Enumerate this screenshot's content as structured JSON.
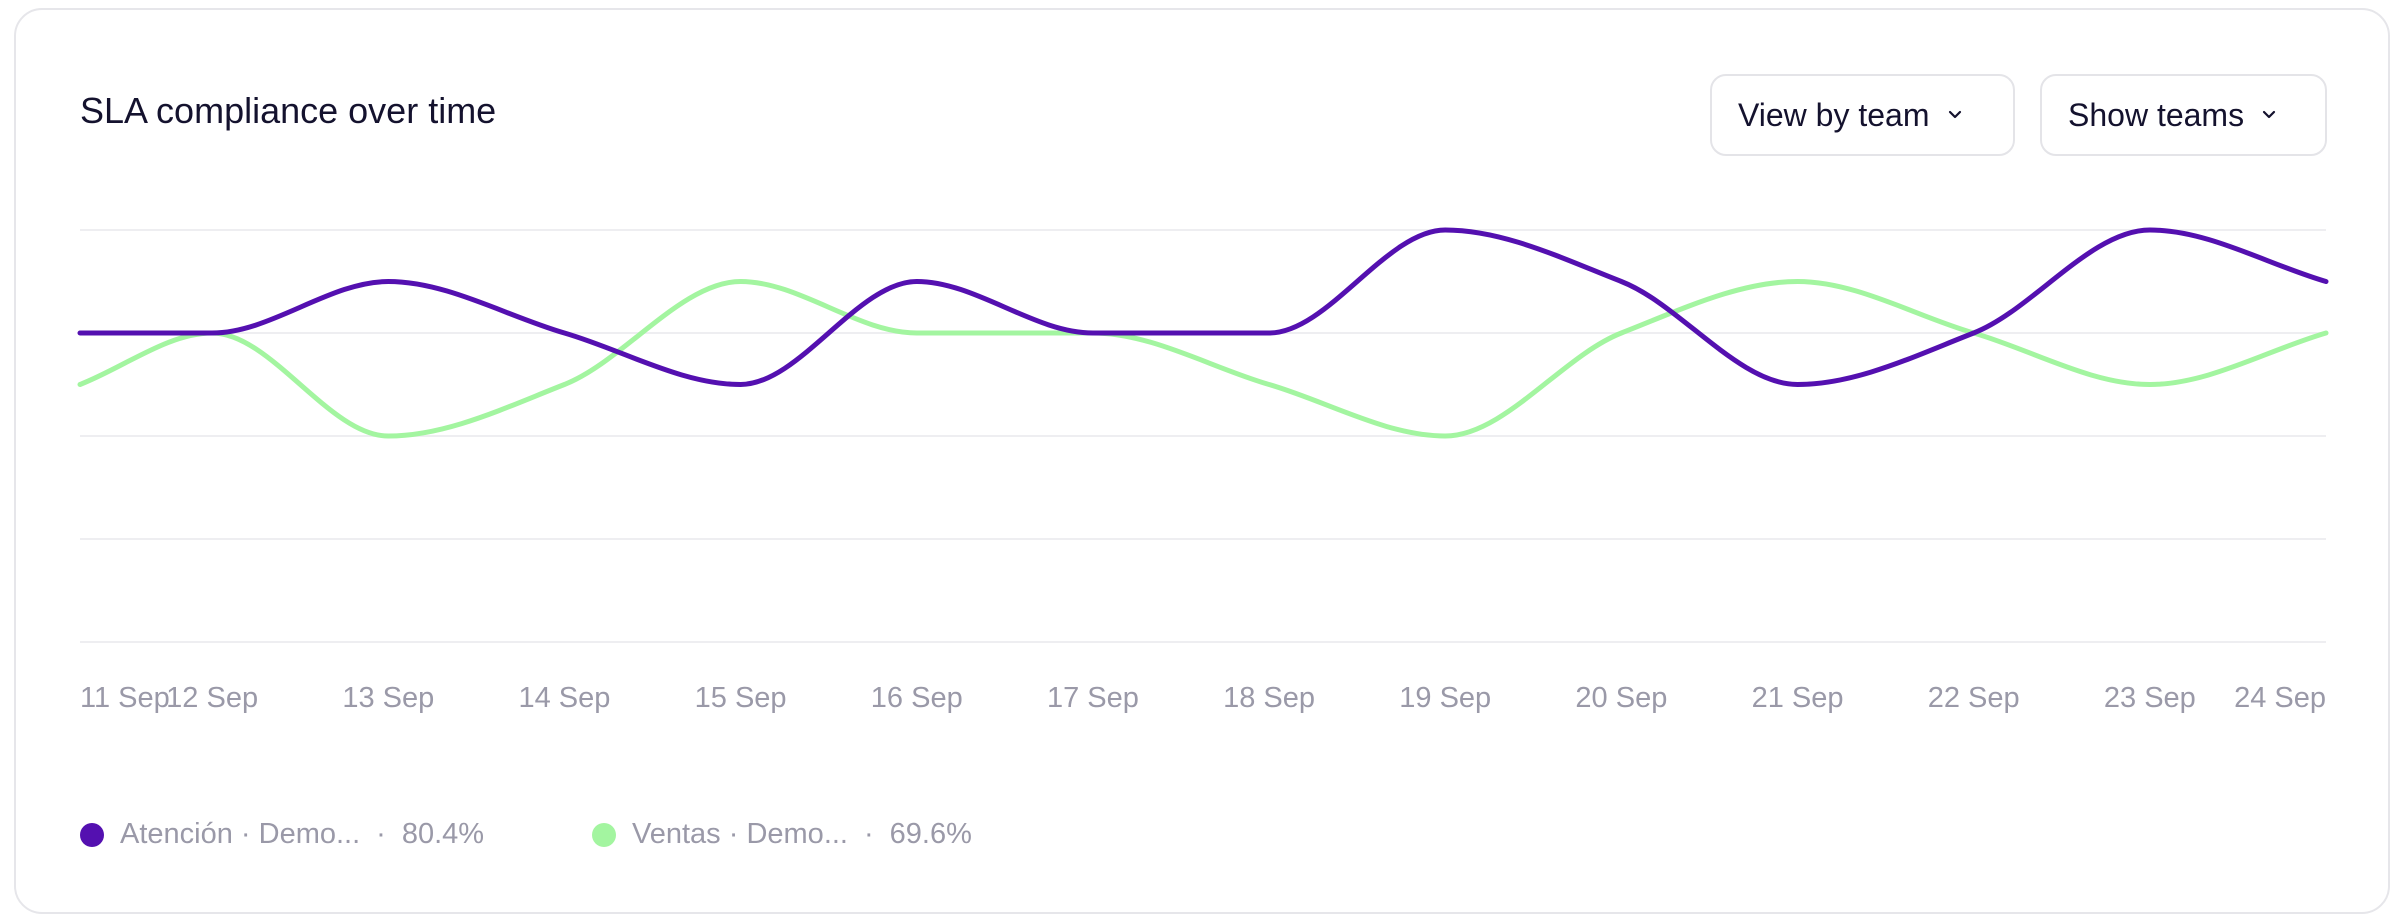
{
  "header": {
    "title": "SLA compliance over time",
    "view_by": "View by team",
    "show_teams": "Show teams"
  },
  "colors": {
    "series_a": "#5410b0",
    "series_b": "#a3f5a0",
    "grid": "#eeeef1",
    "tick": "#9a99a8"
  },
  "legend": [
    {
      "label": "Atención · Demo...",
      "sep": "·",
      "value": "80.4%"
    },
    {
      "label": "Ventas · Demo...",
      "sep": "·",
      "value": "69.6%"
    }
  ],
  "chart_data": {
    "type": "line",
    "categories": [
      "11 Sep",
      "12 Sep",
      "13 Sep",
      "14 Sep",
      "15 Sep",
      "16 Sep",
      "17 Sep",
      "18 Sep",
      "19 Sep",
      "20 Sep",
      "21 Sep",
      "22 Sep",
      "23 Sep",
      "24 Sep"
    ],
    "x_position_days": [
      0,
      0.75,
      1.75,
      2.75,
      3.75,
      4.75,
      5.75,
      6.75,
      7.75,
      8.75,
      9.75,
      10.75,
      11.75,
      12.75
    ],
    "ylim": [
      0,
      100
    ],
    "gridlines": [
      100,
      75,
      50,
      25,
      0
    ],
    "series": [
      {
        "name": "Atención · Demo...",
        "values": [
          75,
          75,
          87.5,
          75,
          62.5,
          87.5,
          75,
          75,
          100,
          87.5,
          62.5,
          75,
          100,
          87.5
        ]
      },
      {
        "name": "Ventas · Demo...",
        "values": [
          62.5,
          75,
          50,
          62.5,
          87.5,
          75,
          75,
          62.5,
          50,
          75,
          87.5,
          75,
          62.5,
          75
        ]
      }
    ]
  }
}
